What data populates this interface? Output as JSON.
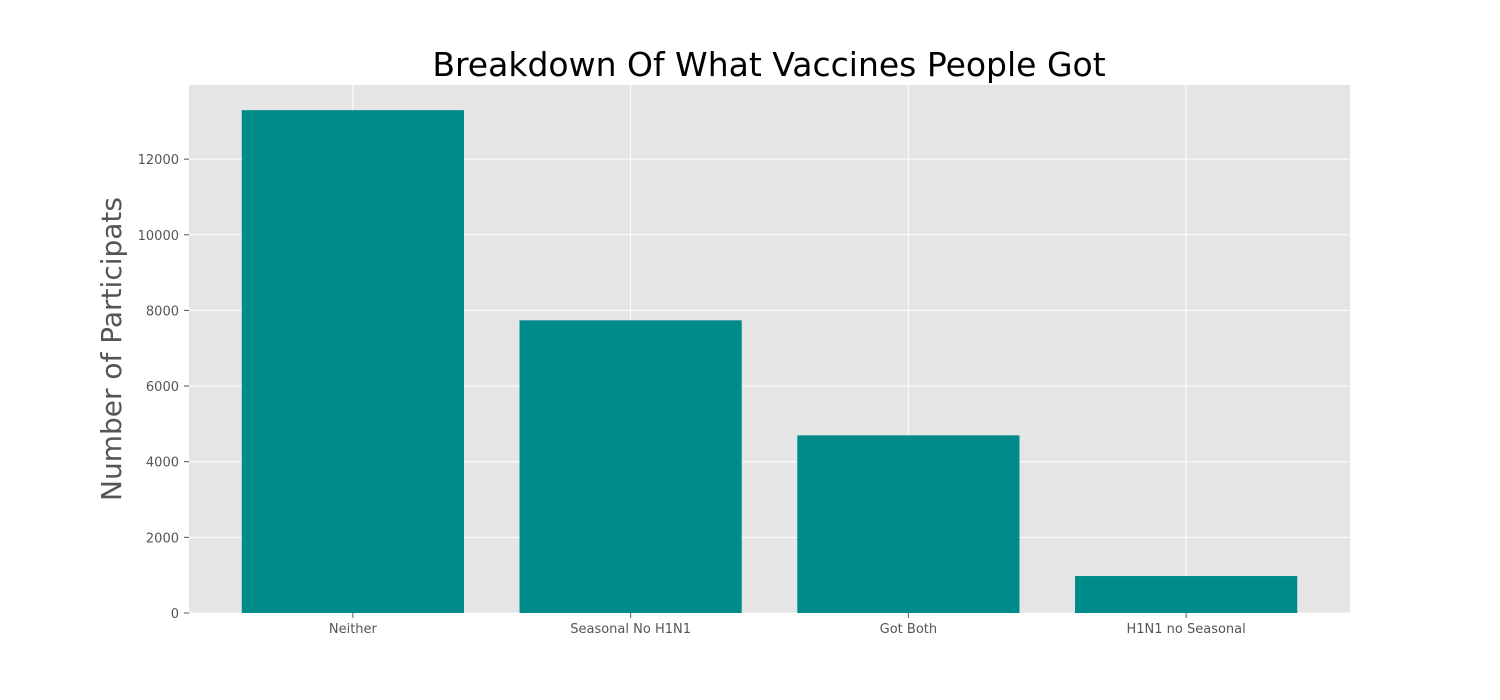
{
  "chart_data": {
    "type": "bar",
    "title": "Breakdown Of What Vaccines People Got",
    "xlabel": "",
    "ylabel": "Number of Participats",
    "categories": [
      "Neither",
      "Seasonal No H1N1",
      "Got Both",
      "H1N1 no Seasonal"
    ],
    "values": [
      13295,
      7738,
      4697,
      977
    ],
    "ylim": [
      0,
      13960
    ],
    "yticks": [
      0,
      2000,
      4000,
      6000,
      8000,
      10000,
      12000
    ],
    "ytick_labels": [
      "0",
      "2000",
      "4000",
      "6000",
      "8000",
      "10000",
      "12000"
    ],
    "grid": true,
    "legend": "none",
    "colors": {
      "bar": "#008b8b",
      "plot_background": "#e5e5e5",
      "grid": "#ffffff",
      "tick_text": "#555555",
      "title_text": "#000000"
    }
  }
}
